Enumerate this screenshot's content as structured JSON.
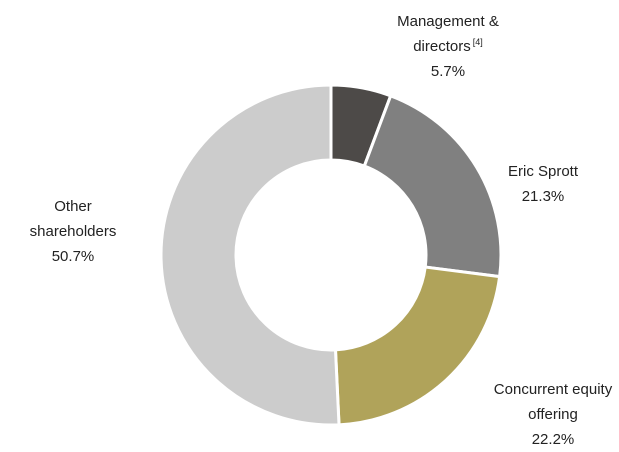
{
  "chart_data": {
    "type": "pie",
    "donut": true,
    "categories": [
      "Management & directors",
      "Eric Sprott",
      "Concurrent equity offering",
      "Other shareholders"
    ],
    "category_notes": [
      "[4]",
      null,
      null,
      null
    ],
    "values": [
      5.7,
      21.3,
      22.2,
      50.7
    ],
    "value_labels": [
      "5.7%",
      "21.3%",
      "22.2%",
      "50.7%"
    ],
    "colors": [
      "#4d4a48",
      "#808080",
      "#b0a35a",
      "#cccccc"
    ]
  }
}
